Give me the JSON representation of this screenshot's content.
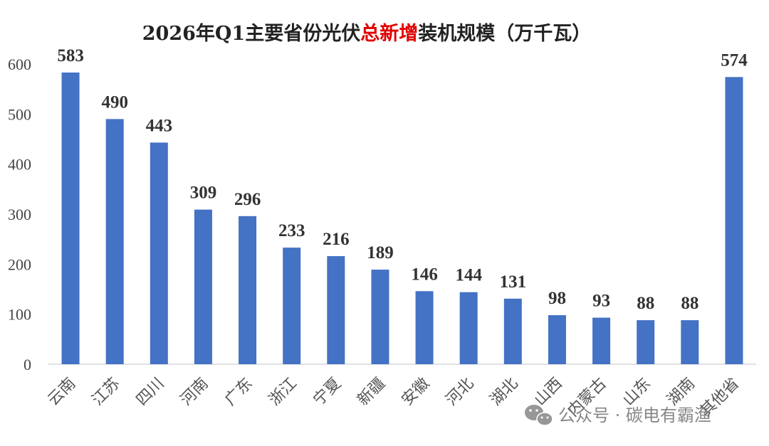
{
  "chart_data": {
    "type": "bar",
    "title_parts": [
      {
        "text": "2026年Q1主要省份光伏",
        "color": "#222222"
      },
      {
        "text": "总新增",
        "color": "#e00000"
      },
      {
        "text": "装机规模（万千瓦）",
        "color": "#222222"
      }
    ],
    "categories": [
      "云南",
      "江苏",
      "四川",
      "河南",
      "广东",
      "浙江",
      "宁夏",
      "新疆",
      "安徽",
      "河北",
      "湖北",
      "山西",
      "内蒙古",
      "山东",
      "湖南",
      "其他省"
    ],
    "values": [
      583,
      490,
      443,
      309,
      296,
      233,
      216,
      189,
      146,
      144,
      131,
      98,
      93,
      88,
      88,
      574
    ],
    "ylim": [
      0,
      600
    ],
    "yticks": [
      0,
      100,
      200,
      300,
      400,
      500,
      600
    ],
    "bar_color": "#4472c4",
    "grid": false,
    "legend": "none"
  },
  "watermark": {
    "text": "公众号 · 碳电有霸渔",
    "icon": "wechat-icon"
  }
}
